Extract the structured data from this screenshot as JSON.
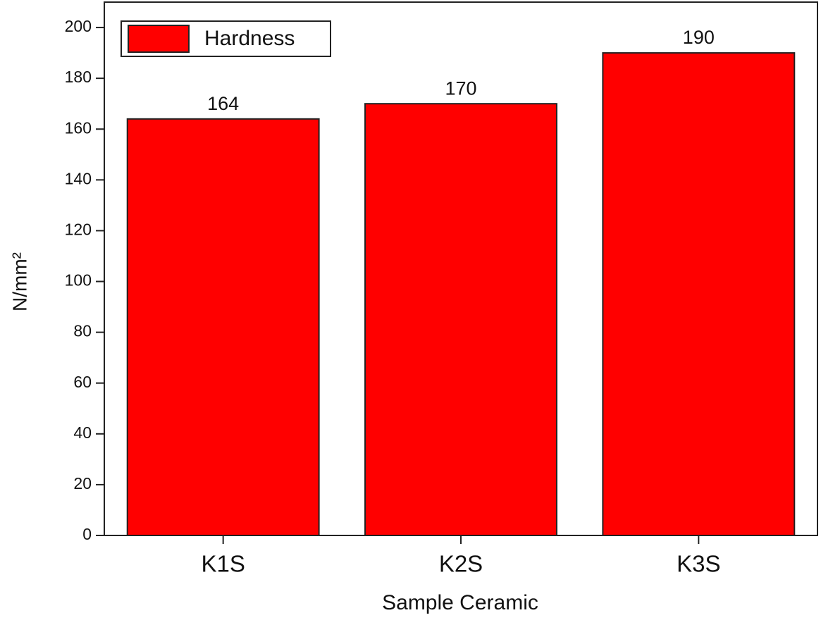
{
  "chart_data": {
    "type": "bar",
    "x_label": "Sample Ceramic",
    "y_label": "N/mm²",
    "categories": [
      "K1S",
      "K2S",
      "K3S"
    ],
    "series": [
      {
        "name": "Hardness",
        "color": "#ff0000",
        "values": [
          164,
          170,
          190
        ]
      }
    ],
    "ylim": [
      0,
      210
    ],
    "yticks": [
      0,
      20,
      40,
      60,
      80,
      100,
      120,
      140,
      160,
      180,
      200
    ],
    "legend": "upper left",
    "show_value_labels": true
  }
}
